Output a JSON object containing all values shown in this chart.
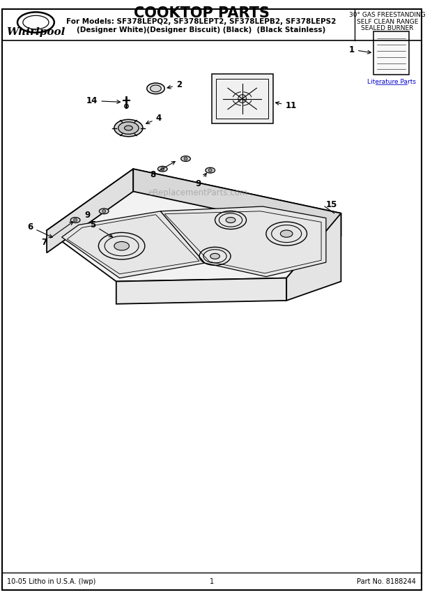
{
  "title": "COOKTOP PARTS",
  "subtitle1": "For Models: SF378LEPQ2, SF378LEPT2, SF378LEPB2, SF378LEPS2",
  "subtitle2": "(Designer White)(Designer Biscuit) (Black)  (Black Stainless)",
  "side_title1": "30° GAS FREESTANDING",
  "side_title2": "SELF CLEAN RANGE",
  "side_title3": "SEALED BURNER",
  "footer_left": "10-05 Litho in U.S.A. (Iwp)",
  "footer_center": "1",
  "footer_right": "Part No. 8188244",
  "lit_parts": "Literature Parts",
  "watermark": "eReplacementParts.com",
  "bg_color": "#ffffff",
  "line_color": "#000000",
  "fig_width": 6.2,
  "fig_height": 8.56
}
